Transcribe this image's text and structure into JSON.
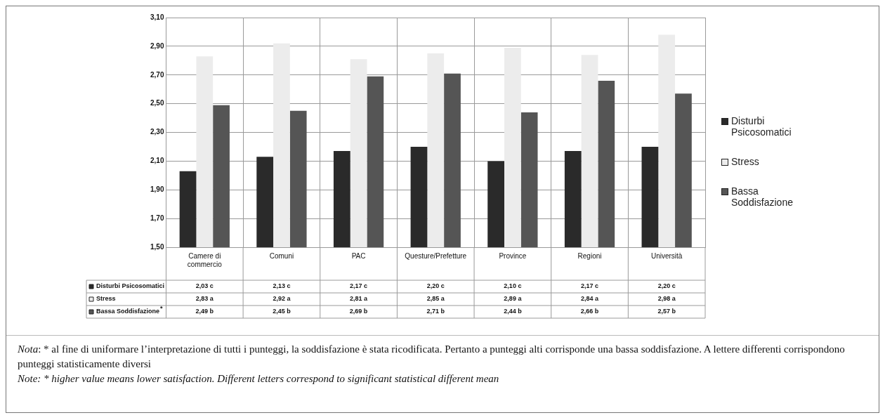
{
  "chart_data": {
    "type": "bar",
    "categories": [
      "Camere di commercio",
      "Comuni",
      "PAC",
      "Questure/Prefetture",
      "Province",
      "Regioni",
      "Università"
    ],
    "series": [
      {
        "name": "Disturbi Psicosomatici",
        "color": "#2a2a2a",
        "values": [
          2.03,
          2.13,
          2.17,
          2.2,
          2.1,
          2.17,
          2.2
        ],
        "value_labels": [
          "2,03 c",
          "2,13 c",
          "2,17 c",
          "2,20 c",
          "2,10 c",
          "2,17 c",
          "2,20 c"
        ]
      },
      {
        "name": "Stress",
        "color": "#ececec",
        "values": [
          2.83,
          2.92,
          2.81,
          2.85,
          2.89,
          2.84,
          2.98
        ],
        "value_labels": [
          "2,83 a",
          "2,92 a",
          "2,81 a",
          "2,85 a",
          "2,89 a",
          "2,84 a",
          "2,98 a"
        ]
      },
      {
        "name": "Bassa Soddisfazione",
        "color": "#555555",
        "values": [
          2.49,
          2.45,
          2.69,
          2.71,
          2.44,
          2.66,
          2.57
        ],
        "value_labels": [
          "2,49 b",
          "2,45 b",
          "2,69 b",
          "2,71 b",
          "2,44 b",
          "2,66 b",
          "2,57 b"
        ]
      }
    ],
    "ylim": [
      1.5,
      3.1
    ],
    "yticks": [
      {
        "value": 1.5,
        "label": "1,50"
      },
      {
        "value": 1.7,
        "label": "1,70"
      },
      {
        "value": 1.9,
        "label": "1,90"
      },
      {
        "value": 2.1,
        "label": "2,10"
      },
      {
        "value": 2.3,
        "label": "2,30"
      },
      {
        "value": 2.5,
        "label": "2,50"
      },
      {
        "value": 2.7,
        "label": "2,70"
      },
      {
        "value": 2.9,
        "label": "2,90"
      },
      {
        "value": 3.1,
        "label": "3,10"
      }
    ],
    "grid": true,
    "legend": "right",
    "annotations": [
      "*",
      "Nota: * al fine di uniformare l’interpretazione di tutti i punteggi, la soddisfazione è stata ricodificata. Pertanto a punteggi alti corrisponde una bassa soddisfazione. A lettere differenti corrispondono punteggi statisticamente diversi",
      "Note: * higher value means lower satisfaction. Different letters correspond to significant statistical different mean"
    ]
  }
}
